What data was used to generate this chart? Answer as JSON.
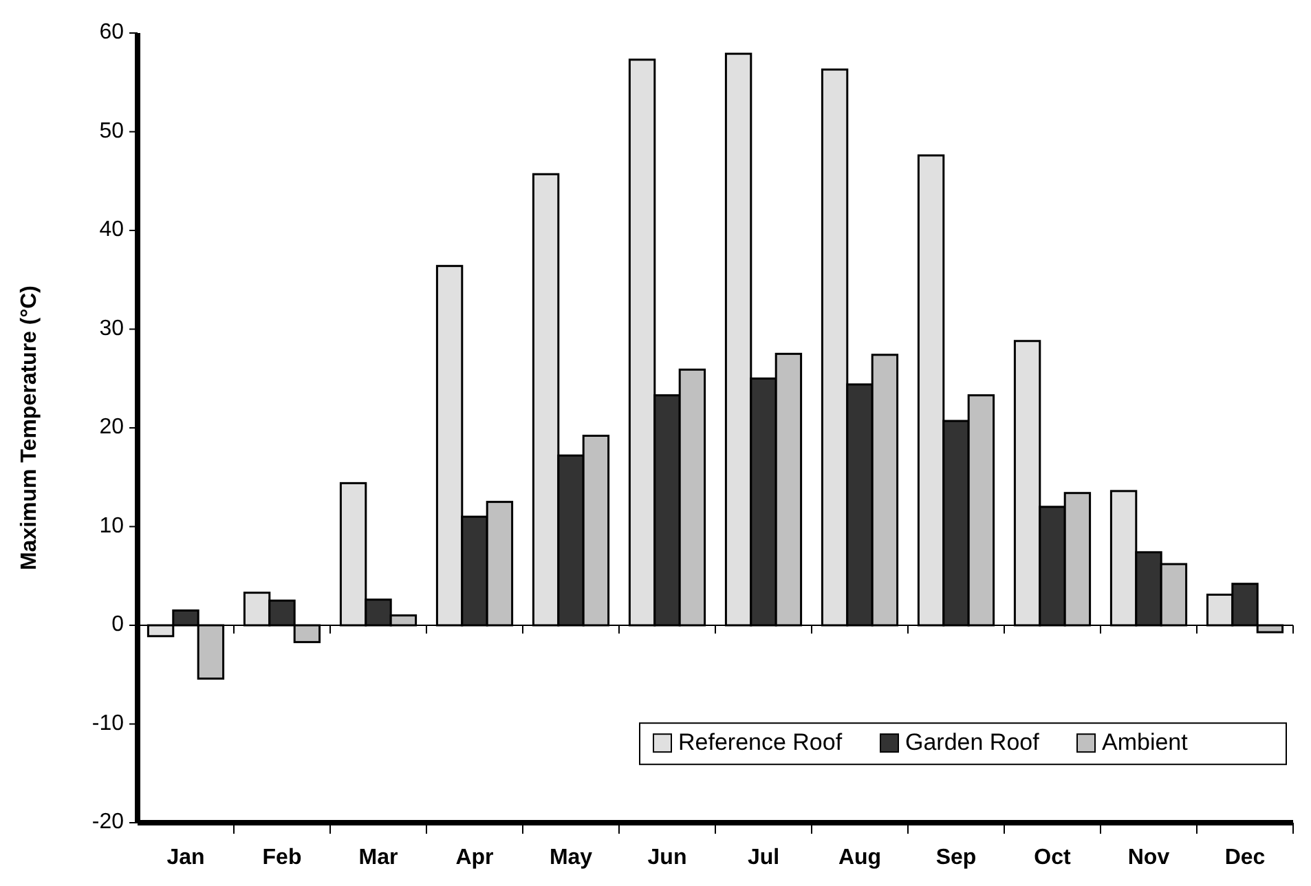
{
  "chart_data": {
    "type": "bar",
    "ylabel": "Maximum Temperature (°C)",
    "categories": [
      "Jan",
      "Feb",
      "Mar",
      "Apr",
      "May",
      "Jun",
      "Jul",
      "Aug",
      "Sep",
      "Oct",
      "Nov",
      "Dec"
    ],
    "series": [
      {
        "name": "Reference Roof",
        "color": "#e0e0e0",
        "values": [
          -1.1,
          3.3,
          14.4,
          36.4,
          45.7,
          57.3,
          57.9,
          56.3,
          47.6,
          28.8,
          13.6,
          3.1
        ]
      },
      {
        "name": "Garden Roof",
        "color": "#333333",
        "values": [
          1.5,
          2.5,
          2.6,
          11.0,
          17.2,
          23.3,
          25.0,
          24.4,
          20.7,
          12.0,
          7.4,
          4.2
        ]
      },
      {
        "name": "Ambient",
        "color": "#c0c0c0",
        "values": [
          -5.4,
          -1.7,
          1.0,
          12.5,
          19.2,
          25.9,
          27.5,
          27.4,
          23.3,
          13.4,
          6.2,
          -0.7
        ]
      }
    ],
    "ylim": [
      -20,
      60
    ],
    "yticks": [
      -20,
      -10,
      0,
      10,
      20,
      30,
      40,
      50,
      60
    ],
    "legend": "bottom right"
  }
}
